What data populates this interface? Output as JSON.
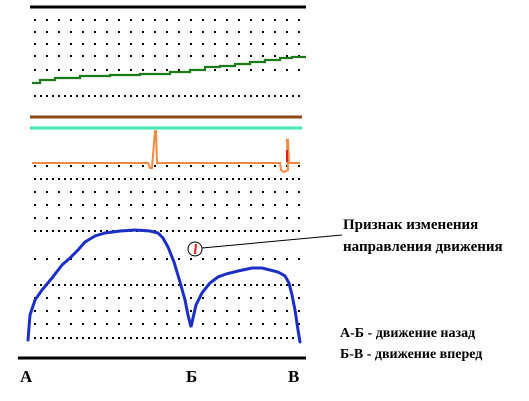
{
  "annotation": {
    "line1": "Признак изменения",
    "line2": "направления движения"
  },
  "legend": {
    "ab": "А-Б - движение назад",
    "bv": "Б-В - движение вперед"
  },
  "points": {
    "a": "А",
    "b": "Б",
    "v": "В"
  },
  "colors": {
    "frame": "#000000",
    "green_trace": "#1a7a1a",
    "brown_line": "#8b4a1a",
    "aqua_line": "#40e8b0",
    "orange_trace": "#ef8a40",
    "blue_trace": "#1c2fc4",
    "marker": "#e0201c"
  },
  "icons": {
    "direction_marker": "red-tick-in-circle-icon"
  }
}
